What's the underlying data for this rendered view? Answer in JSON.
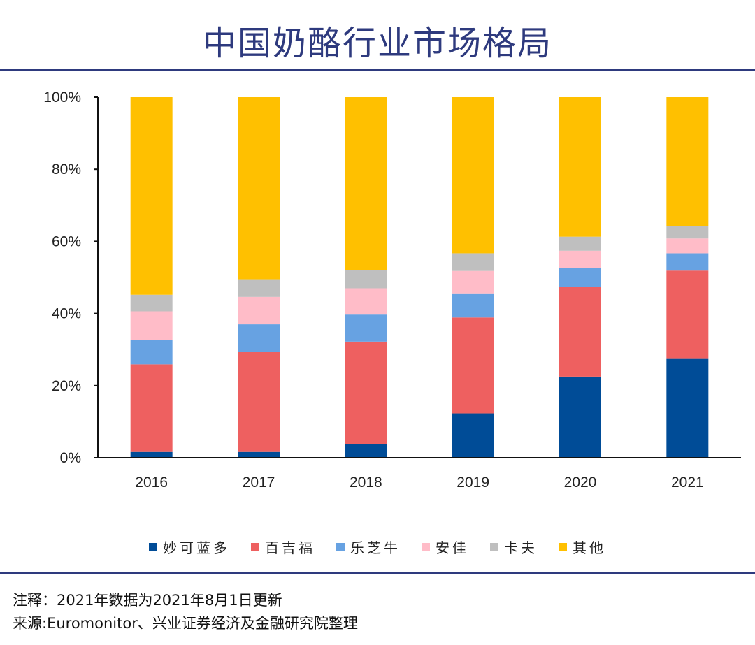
{
  "title": "中国奶酪行业市场格局",
  "notes": [
    "注释：2021年数据为2021年8月1日更新",
    "来源:Euromonitor、兴业证券经济及金融研究院整理"
  ],
  "colors": {
    "accent": "#2e3a7e"
  },
  "chart_data": {
    "type": "bar",
    "stacked": true,
    "categories": [
      "2016",
      "2017",
      "2018",
      "2019",
      "2020",
      "2021"
    ],
    "ylim": [
      0,
      100
    ],
    "yticks": [
      "0%",
      "20%",
      "40%",
      "60%",
      "80%",
      "100%"
    ],
    "legend_position": "bottom",
    "grid": false,
    "series": [
      {
        "name": "妙可蓝多",
        "color": "#004c97",
        "values": [
          1.6,
          1.6,
          3.7,
          12.3,
          22.5,
          27.4
        ]
      },
      {
        "name": "百吉福",
        "color": "#ee6060",
        "values": [
          24.3,
          27.8,
          28.5,
          26.6,
          24.9,
          24.5
        ]
      },
      {
        "name": "乐芝牛",
        "color": "#67a2e2",
        "values": [
          6.7,
          7.6,
          7.5,
          6.5,
          5.3,
          4.8
        ]
      },
      {
        "name": "安佳",
        "color": "#ffbcc8",
        "values": [
          8.0,
          7.6,
          7.3,
          6.4,
          4.7,
          4.1
        ]
      },
      {
        "name": "卡夫",
        "color": "#bfbfbf",
        "values": [
          4.6,
          4.9,
          5.1,
          4.9,
          3.9,
          3.4
        ]
      },
      {
        "name": "其他",
        "color": "#ffc000",
        "values": [
          54.8,
          50.5,
          47.9,
          43.3,
          38.7,
          35.8
        ]
      }
    ]
  }
}
